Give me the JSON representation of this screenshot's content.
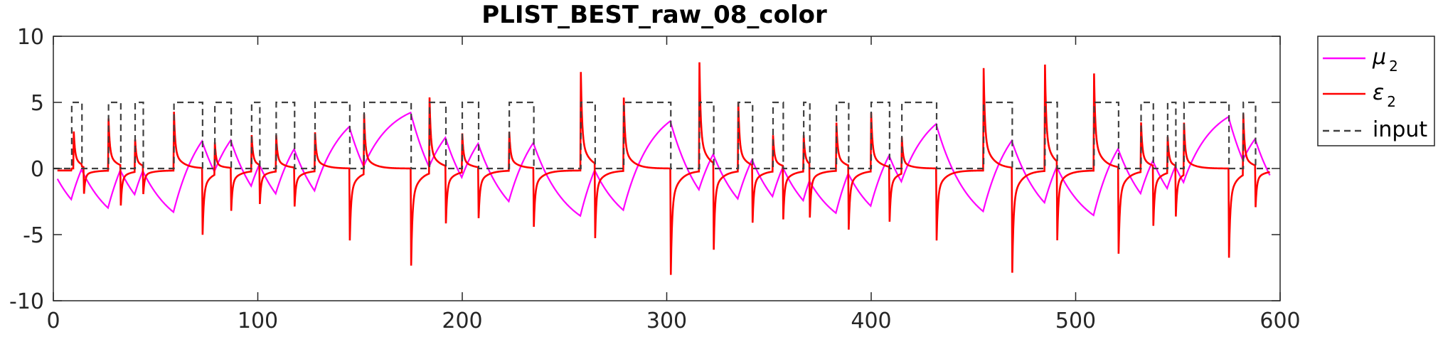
{
  "chart_data": {
    "type": "line",
    "title": "PLIST_BEST_raw_08_color",
    "xlabel": "",
    "ylabel": "",
    "xlim": [
      0,
      600
    ],
    "ylim": [
      -10,
      10
    ],
    "xticks": [
      0,
      100,
      200,
      300,
      400,
      500,
      600
    ],
    "yticks": [
      -10,
      -5,
      0,
      5,
      10
    ],
    "xtick_labels": [
      "0",
      "100",
      "200",
      "300",
      "400",
      "500",
      "600"
    ],
    "ytick_labels": [
      "-10",
      "-5",
      "0",
      "5",
      "10"
    ],
    "grid": false,
    "legend_position": "outside-top-right",
    "input_high_intervals": [
      [
        9,
        14
      ],
      [
        27,
        33
      ],
      [
        40,
        44
      ],
      [
        59,
        73
      ],
      [
        79,
        87
      ],
      [
        97,
        101
      ],
      [
        109,
        118
      ],
      [
        128,
        145
      ],
      [
        152,
        175
      ],
      [
        184,
        192
      ],
      [
        200,
        208
      ],
      [
        223,
        235
      ],
      [
        258,
        265
      ],
      [
        279,
        302
      ],
      [
        316,
        323
      ],
      [
        335,
        342
      ],
      [
        352,
        357
      ],
      [
        367,
        370
      ],
      [
        383,
        389
      ],
      [
        400,
        409
      ],
      [
        415,
        432
      ],
      [
        455,
        469
      ],
      [
        485,
        491
      ],
      [
        509,
        521
      ],
      [
        532,
        538
      ],
      [
        545,
        549
      ],
      [
        553,
        575
      ],
      [
        582,
        588
      ]
    ],
    "series": [
      {
        "name": "μ",
        "name_subscript": "2",
        "color": "#ff00ff",
        "style": "solid",
        "approx_range": [
          -4.8,
          4.8
        ],
        "description_values": "rises toward +4.7 while input is high, falls toward -4.8 while input is low"
      },
      {
        "name": "ε",
        "name_subscript": "2",
        "color": "#ff0000",
        "style": "solid",
        "spike_peaks": [
          [
            10,
            2.8
          ],
          [
            15,
            -2.0
          ],
          [
            27,
            3.8
          ],
          [
            33,
            -2.9
          ],
          [
            40,
            2.3
          ],
          [
            44,
            -2.0
          ],
          [
            59,
            4.3
          ],
          [
            73,
            -4.9
          ],
          [
            79,
            2.3
          ],
          [
            87,
            -3.1
          ],
          [
            97,
            2.6
          ],
          [
            101,
            -2.8
          ],
          [
            109,
            2.6
          ],
          [
            118,
            -2.8
          ],
          [
            128,
            2.8
          ],
          [
            145,
            -5.3
          ],
          [
            152,
            4.4
          ],
          [
            175,
            -7.2
          ],
          [
            184,
            5.6
          ],
          [
            192,
            -4.2
          ],
          [
            200,
            2.8
          ],
          [
            208,
            -3.7
          ],
          [
            223,
            2.8
          ],
          [
            235,
            -4.3
          ],
          [
            258,
            7.3
          ],
          [
            265,
            -5.5
          ],
          [
            279,
            5.4
          ],
          [
            302,
            -7.9
          ],
          [
            316,
            8.1
          ],
          [
            323,
            -6.4
          ],
          [
            335,
            5.1
          ],
          [
            342,
            -4.2
          ],
          [
            352,
            2.6
          ],
          [
            357,
            -3.9
          ],
          [
            367,
            2.6
          ],
          [
            370,
            -3.9
          ],
          [
            383,
            3.5
          ],
          [
            389,
            -4.7
          ],
          [
            400,
            4.3
          ],
          [
            409,
            -4.0
          ],
          [
            415,
            2.6
          ],
          [
            432,
            -5.3
          ],
          [
            455,
            7.6
          ],
          [
            469,
            -7.8
          ],
          [
            485,
            7.9
          ],
          [
            491,
            -5.8
          ],
          [
            509,
            7.2
          ],
          [
            521,
            -6.4
          ],
          [
            532,
            3.6
          ],
          [
            538,
            -4.4
          ],
          [
            545,
            2.6
          ],
          [
            549,
            -3.7
          ],
          [
            553,
            3.8
          ],
          [
            575,
            -6.6
          ],
          [
            582,
            4.5
          ],
          [
            588,
            -3.0
          ]
        ]
      },
      {
        "name": "input",
        "color": "#404040",
        "style": "dashed",
        "low_value": 0,
        "high_value": 5
      }
    ]
  }
}
